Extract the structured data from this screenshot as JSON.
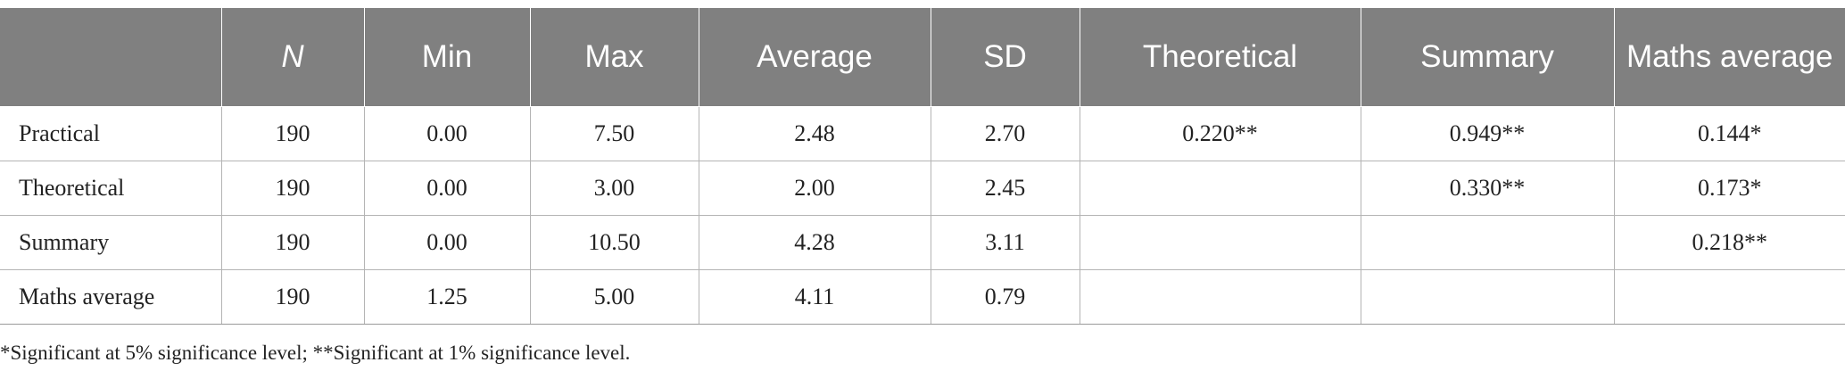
{
  "table": {
    "headers": [
      "",
      "N",
      "Min",
      "Max",
      "Average",
      "SD",
      "Theoretical",
      "Summary",
      "Maths average"
    ],
    "rows": [
      [
        "Practical",
        "190",
        "0.00",
        "7.50",
        "2.48",
        "2.70",
        "0.220**",
        "0.949**",
        "0.144*"
      ],
      [
        "Theoretical",
        "190",
        "0.00",
        "3.00",
        "2.00",
        "2.45",
        "",
        "0.330**",
        "0.173*"
      ],
      [
        "Summary",
        "190",
        "0.00",
        "10.50",
        "4.28",
        "3.11",
        "",
        "",
        "0.218**"
      ],
      [
        "Maths average",
        "190",
        "1.25",
        "5.00",
        "4.11",
        "0.79",
        "",
        "",
        ""
      ]
    ]
  },
  "footnote": "*Significant at 5% significance level; **Significant at 1% significance level.",
  "colors": {
    "header_bg": "#808080",
    "header_text": "#ffffff",
    "grid_line": "#b4b4b4",
    "body_text": "#222222"
  }
}
